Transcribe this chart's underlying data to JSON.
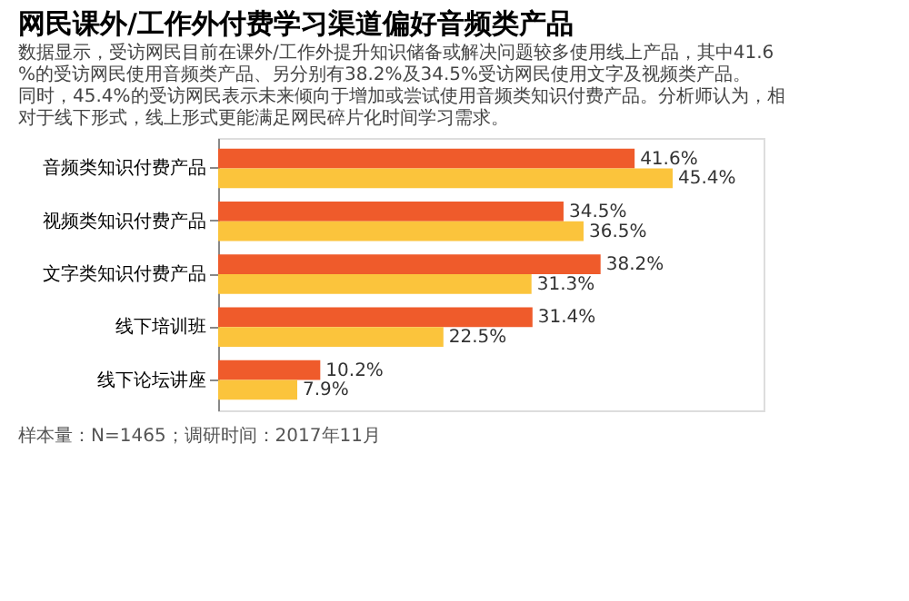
{
  "chart_data": {
    "type": "bar",
    "orientation": "horizontal",
    "title": "网民课外/工作外付费学习渠道偏好音频类产品",
    "categories": [
      "音频类知识付费产品",
      "视频类知识付费产品",
      "文字类知识付费产品",
      "线下培训班",
      "线下论坛讲座"
    ],
    "series": [
      {
        "color": "#ef5b2b",
        "values": [
          41.6,
          34.5,
          38.2,
          31.4,
          10.2
        ],
        "value_labels": [
          "41.6%",
          "34.5%",
          "38.2%",
          "31.4%",
          "10.2%"
        ]
      },
      {
        "color": "#fbc43c",
        "values": [
          45.4,
          36.5,
          31.3,
          22.5,
          7.9
        ],
        "value_labels": [
          "45.4%",
          "36.5%",
          "31.3%",
          "22.5%",
          "7.9%"
        ]
      }
    ],
    "annotations": [
      "数据显示，受访网民目前在课外/工作外提升知识储备或解决问题较多使用线上产品，其中41.6%的受访网民使用音频类产品、另分别有38.2%及34.5%受访网民使用文字及视频类产品。同时，45.4%的受访网民表示未来倾向于增加或尝试使用音频类知识付费产品。分析师认为，相对于线下形式，线上形式更能满足网民碎片化时间学习需求。",
      "样本量：N=1465；调研时间：2017年11月"
    ],
    "legend": false,
    "grid": false
  }
}
